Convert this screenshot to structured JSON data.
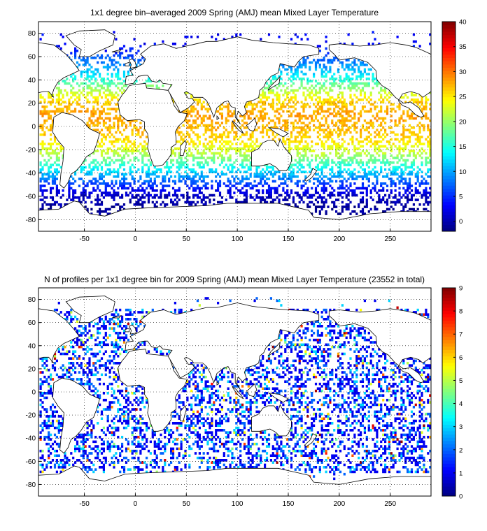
{
  "chart_data": [
    {
      "type": "heatmap",
      "title": "1x1 degree bin–averaged 2009 Spring (AMJ) mean Mixed Layer Temperature",
      "xlabel": "",
      "ylabel": "",
      "xlim": [
        -95,
        290
      ],
      "ylim": [
        -90,
        90
      ],
      "x_ticks": [
        "-50",
        "0",
        "50",
        "100",
        "150",
        "200",
        "250"
      ],
      "y_ticks": [
        "80",
        "60",
        "40",
        "20",
        "0",
        "-20",
        "-40",
        "-60",
        "-80"
      ],
      "grid": "on (dotted)",
      "colorbar": {
        "min": -2,
        "max": 40,
        "ticks": [
          "40",
          "35",
          "30",
          "25",
          "20",
          "15",
          "10",
          "5",
          "0"
        ],
        "colormap": "jet"
      },
      "zonal_mean_by_latitude": {
        "lat": [
          -70,
          -65,
          -60,
          -55,
          -50,
          -45,
          -40,
          -35,
          -30,
          -25,
          -20,
          -15,
          -10,
          -5,
          0,
          5,
          10,
          15,
          20,
          25,
          30,
          35,
          40,
          45,
          50,
          55,
          60,
          65,
          70
        ],
        "value": [
          -1,
          0,
          1,
          3,
          6,
          9,
          12,
          15,
          18,
          21,
          23,
          25,
          26,
          27,
          27,
          28,
          28,
          27,
          26,
          24,
          21,
          18,
          15,
          12,
          10,
          8,
          6,
          4,
          3
        ]
      }
    },
    {
      "type": "heatmap",
      "title": "N of profiles per 1x1 degree bin for 2009 Spring (AMJ) mean Mixed Layer Temperature  (23552 in total)",
      "xlabel": "",
      "ylabel": "",
      "xlim": [
        -95,
        290
      ],
      "ylim": [
        -90,
        90
      ],
      "x_ticks": [
        "-50",
        "0",
        "50",
        "100",
        "150",
        "200",
        "250"
      ],
      "y_ticks": [
        "80",
        "60",
        "40",
        "20",
        "0",
        "-20",
        "-40",
        "-60",
        "-80"
      ],
      "grid": "on (dotted)",
      "colorbar": {
        "min": 0,
        "max": 9,
        "ticks": [
          "9",
          "8",
          "7",
          "6",
          "5",
          "4",
          "3",
          "2",
          "1",
          "0"
        ],
        "colormap": "jet"
      },
      "total_profiles": 23552,
      "typical_counts": "mostly 1-3 profiles per bin, occasional 6-9 near western Pacific"
    }
  ]
}
